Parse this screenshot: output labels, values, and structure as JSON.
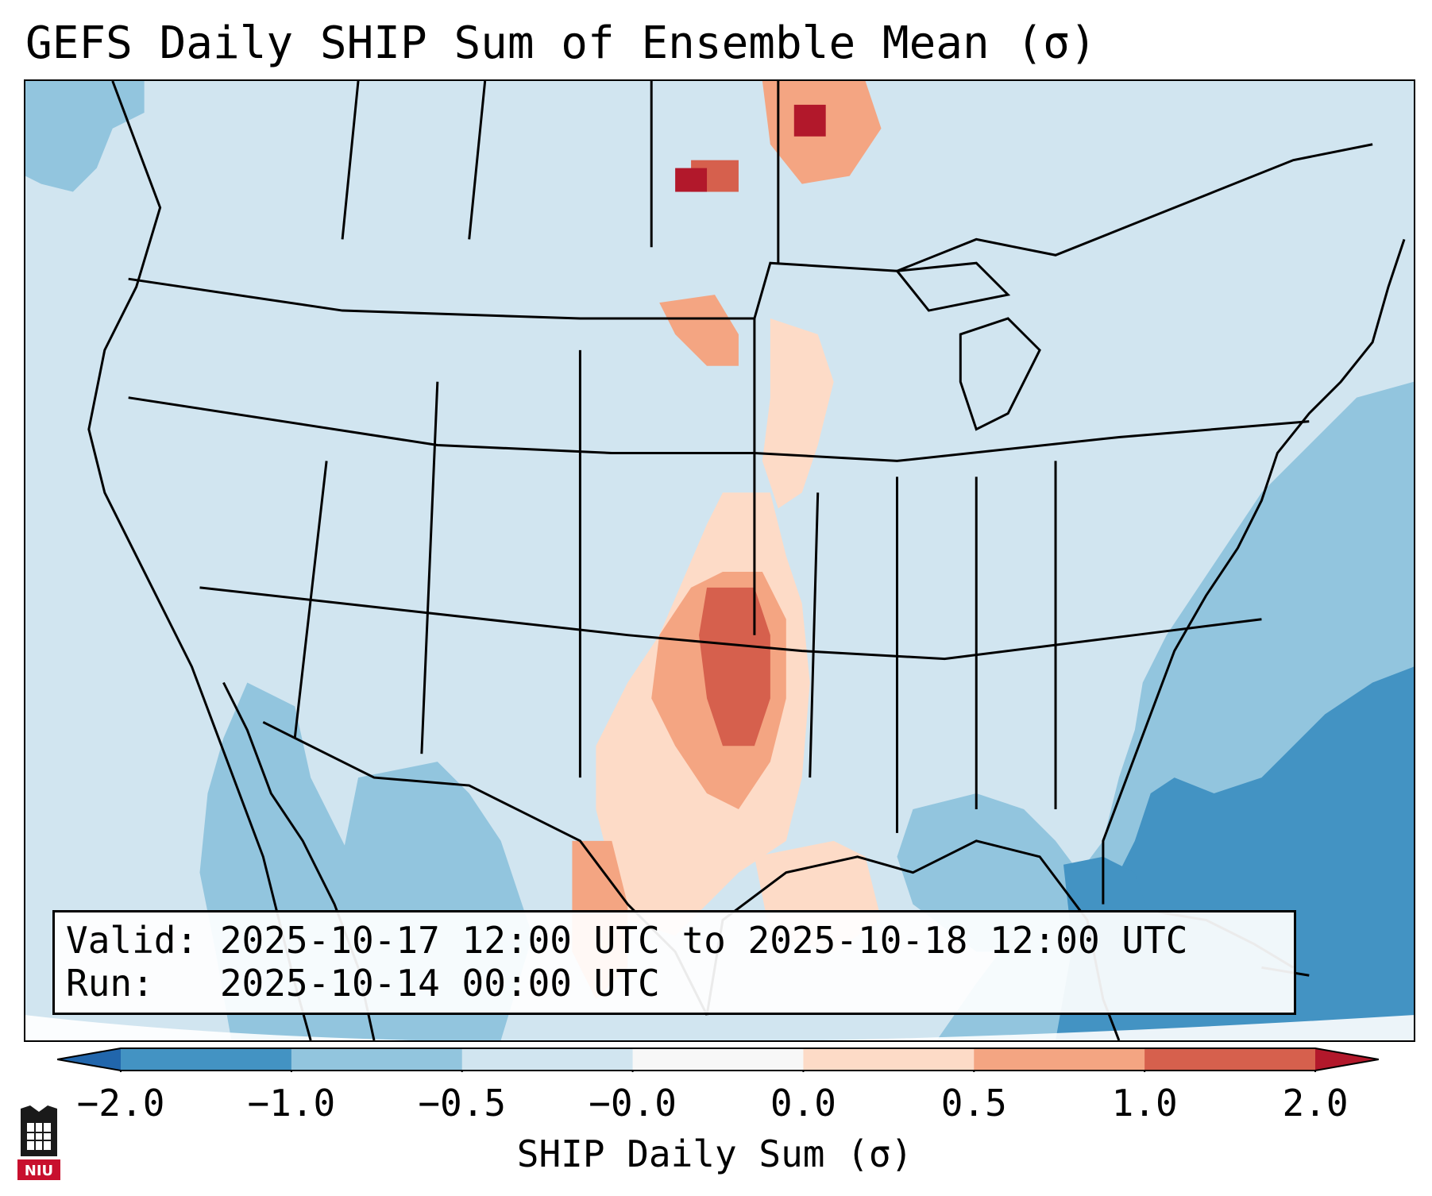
{
  "title": "GEFS Daily SHIP Sum of Ensemble Mean (σ)",
  "info": {
    "valid_line": "Valid: 2025-10-17 12:00 UTC to 2025-10-18 12:00 UTC",
    "run_line": "Run:   2025-10-14 00:00 UTC"
  },
  "colorbar": {
    "label": "SHIP Daily Sum (σ)",
    "ticks": [
      "−2.0",
      "−1.0",
      "−0.5",
      "−0.0",
      "0.0",
      "0.5",
      "1.0",
      "2.0"
    ],
    "colors": [
      "#4393c3",
      "#92c5de",
      "#d1e5f0",
      "#f7f7f7",
      "#fddbc7",
      "#f4a582",
      "#d6604d"
    ],
    "under_color": "#2166ac",
    "over_color": "#b2182b"
  },
  "logo": {
    "text": "NIU",
    "color": "#c8102e"
  }
}
